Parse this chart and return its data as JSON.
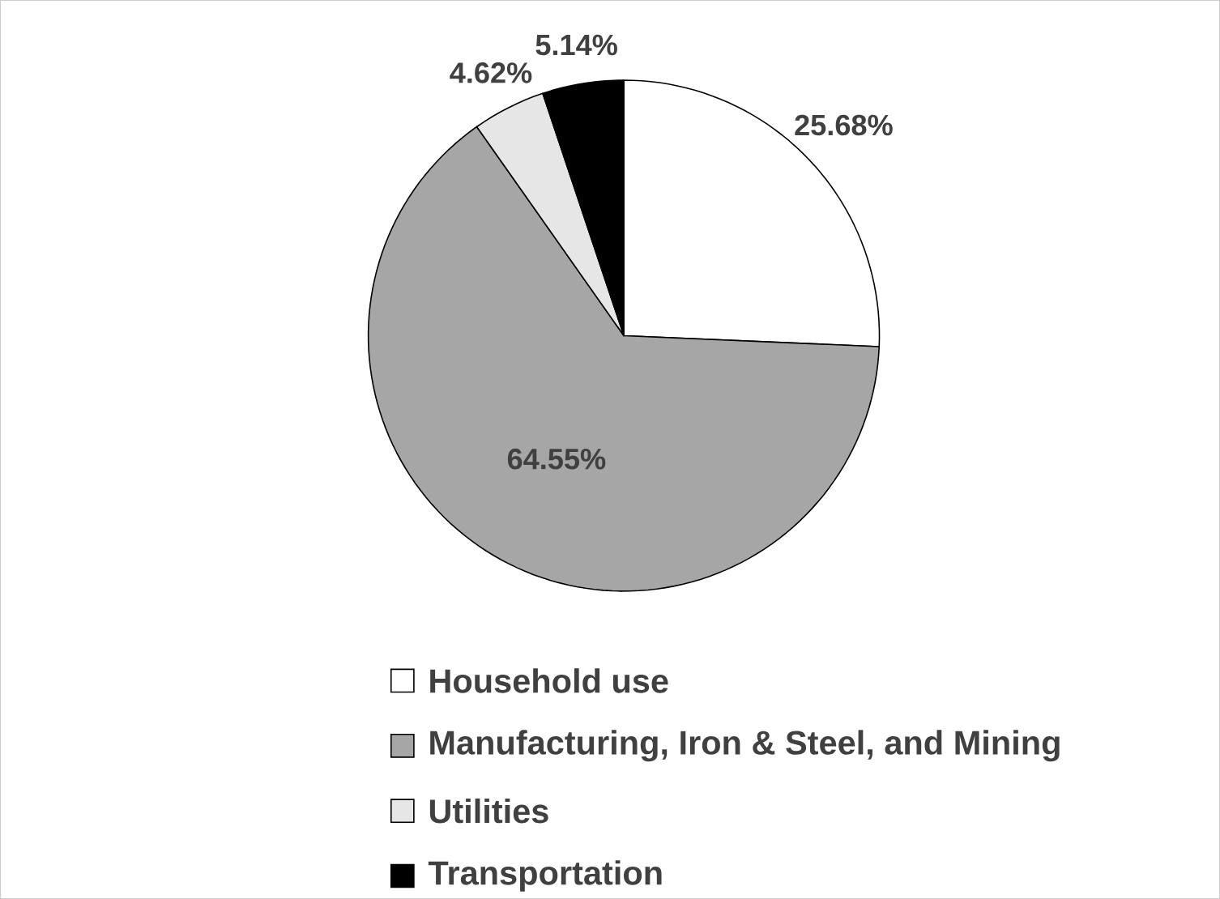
{
  "chart_data": {
    "type": "pie",
    "categories": [
      "Household use",
      "Manufacturing, Iron & Steel, and Mining",
      "Utilities",
      "Transportation"
    ],
    "values": [
      25.68,
      64.55,
      4.62,
      5.14
    ],
    "colors": [
      "#ffffff",
      "#a6a6a6",
      "#e6e6e6",
      "#000000"
    ],
    "value_labels": [
      "25.68%",
      "64.55%",
      "4.62%",
      "5.14%"
    ],
    "legend": "bottom"
  }
}
